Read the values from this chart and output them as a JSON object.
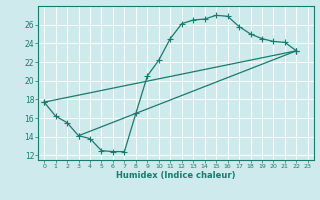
{
  "xlabel": "Humidex (Indice chaleur)",
  "bg_color": "#ceeaec",
  "grid_color": "#ffffff",
  "line_color": "#1a7a6e",
  "xlim": [
    -0.5,
    23.5
  ],
  "ylim": [
    11.5,
    28.0
  ],
  "xticks": [
    0,
    1,
    2,
    3,
    4,
    5,
    6,
    7,
    8,
    9,
    10,
    11,
    12,
    13,
    14,
    15,
    16,
    17,
    18,
    19,
    20,
    21,
    22,
    23
  ],
  "yticks": [
    12,
    14,
    16,
    18,
    20,
    22,
    24,
    26
  ],
  "curve1_x": [
    0,
    1,
    2,
    3,
    4,
    5,
    6,
    7,
    8,
    9,
    10,
    11,
    12,
    13,
    14,
    15,
    16,
    17,
    18,
    19,
    20,
    21,
    22
  ],
  "curve1_y": [
    17.7,
    16.2,
    15.5,
    14.1,
    13.8,
    12.5,
    12.4,
    12.4,
    16.5,
    20.5,
    22.2,
    24.5,
    26.1,
    26.5,
    26.6,
    27.0,
    26.9,
    25.8,
    25.0,
    24.5,
    24.2,
    24.1,
    23.2
  ],
  "curve2_x": [
    3,
    22
  ],
  "curve2_y": [
    14.1,
    23.2
  ],
  "curve3_x": [
    0,
    22
  ],
  "curve3_y": [
    17.7,
    23.2
  ],
  "marker": "+",
  "markersize": 4.0,
  "linewidth": 0.9
}
